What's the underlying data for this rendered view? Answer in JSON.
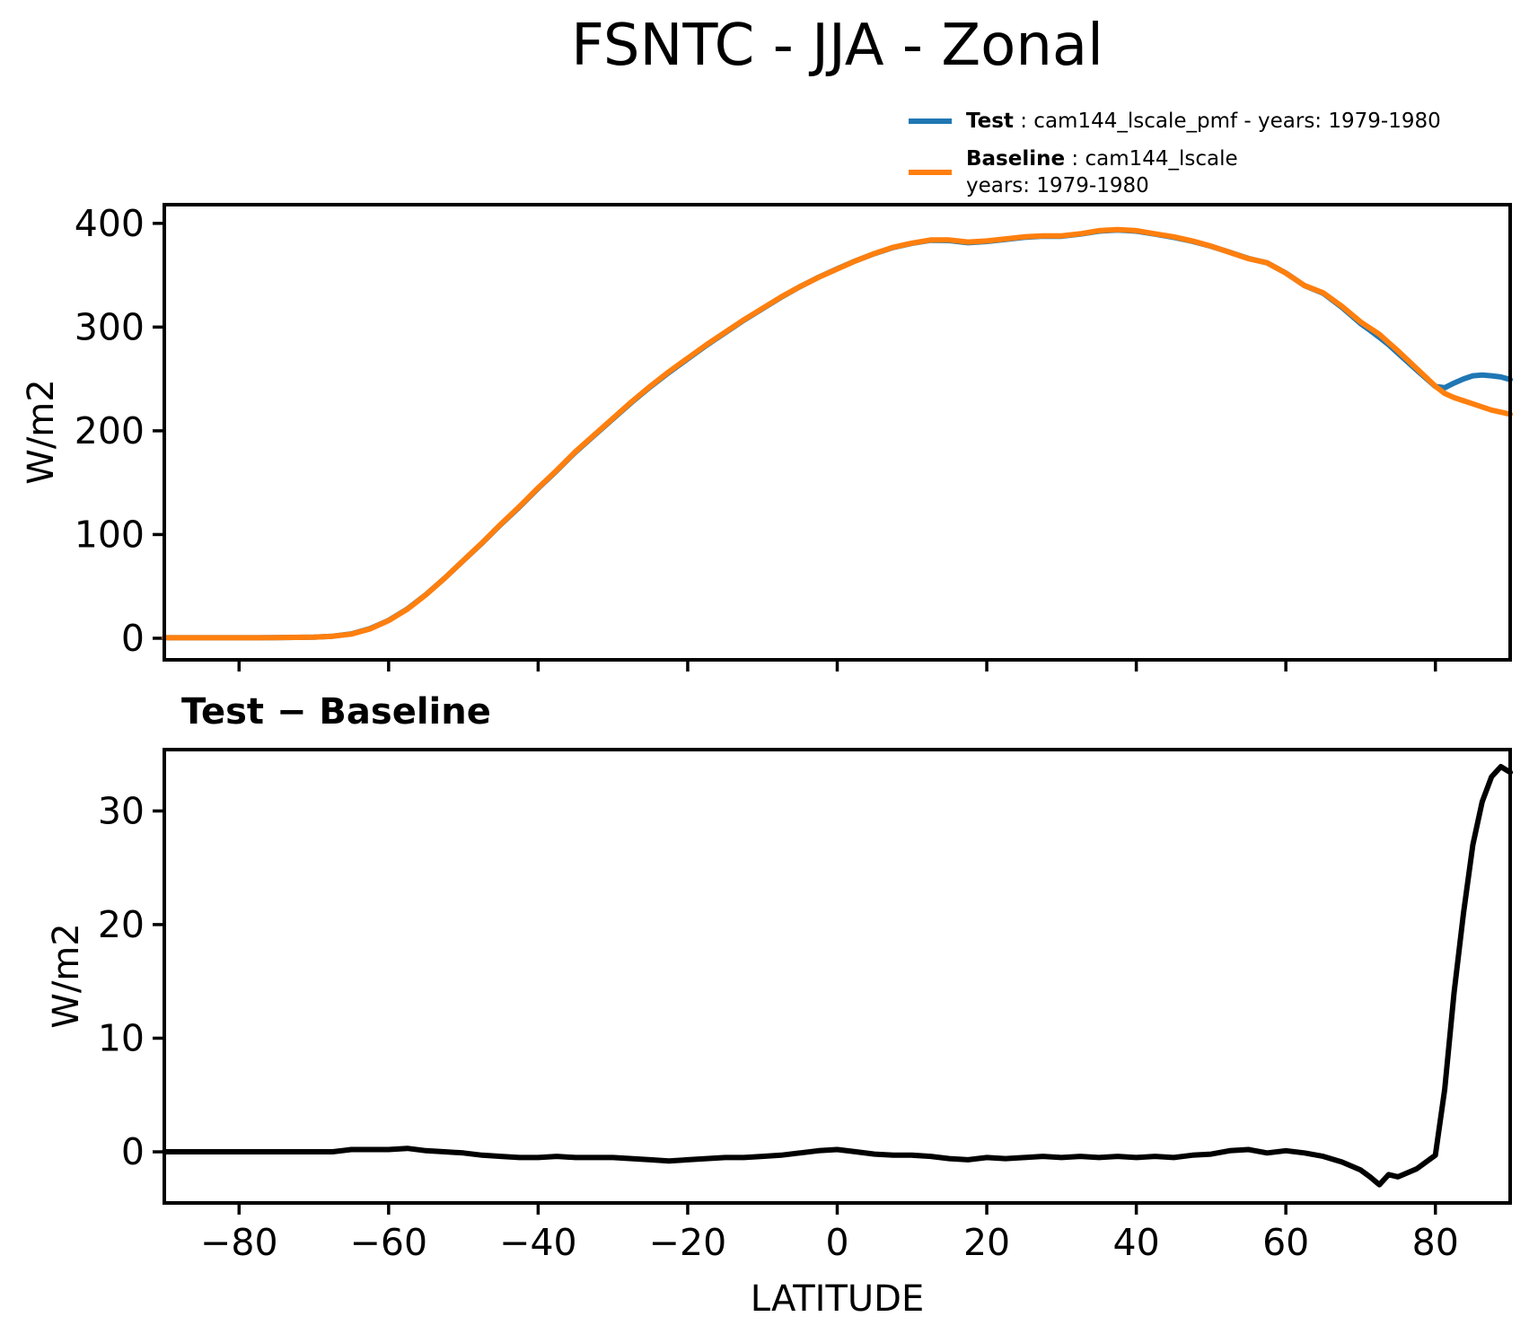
{
  "figure": {
    "title": "FSNTC - JJA - Zonal",
    "background": "#ffffff"
  },
  "legend": {
    "items": [
      {
        "name": "Test",
        "swatch_color": "#1f77b4",
        "label_bold": "Test",
        "label_rest": " : cam144_lscale_pmf - years: 1979-1980",
        "label_line2": ""
      },
      {
        "name": "Baseline",
        "swatch_color": "#ff7f0e",
        "label_bold": "Baseline",
        "label_rest": " : cam144_lscale",
        "label_line2": "years: 1979-1980"
      }
    ]
  },
  "panels": {
    "top": {
      "y_label": "W/m2"
    },
    "bottom": {
      "title": "Test − Baseline",
      "y_label": "W/m2",
      "x_label": "LATITUDE"
    }
  },
  "colors": {
    "test": "#1f77b4",
    "baseline": "#ff7f0e",
    "diff": "#000000",
    "axis": "#000000"
  },
  "chart_data": [
    {
      "type": "line",
      "title": "FSNTC - JJA - Zonal",
      "xlabel": "",
      "ylabel": "W/m2",
      "xlim": [
        -90,
        90
      ],
      "ylim": [
        -20.8,
        418
      ],
      "x_ticks": [
        -80,
        -60,
        -40,
        -20,
        0,
        20,
        40,
        60,
        80
      ],
      "y_ticks": [
        0,
        100,
        200,
        300,
        400
      ],
      "show_x_tick_labels": false,
      "grid": false,
      "legend_position": "upper right outside",
      "x": [
        -90,
        -87.5,
        -85,
        -82.5,
        -80,
        -77.5,
        -75,
        -72.5,
        -70,
        -67.5,
        -65,
        -62.5,
        -60,
        -57.5,
        -55,
        -52.5,
        -50,
        -47.5,
        -45,
        -42.5,
        -40,
        -37.5,
        -35,
        -32.5,
        -30,
        -27.5,
        -25,
        -22.5,
        -20,
        -17.5,
        -15,
        -12.5,
        -10,
        -7.5,
        -5,
        -2.5,
        0,
        2.5,
        5,
        7.5,
        10,
        12.5,
        15,
        17.5,
        20,
        22.5,
        25,
        27.5,
        30,
        32.5,
        35,
        37.5,
        40,
        42.5,
        45,
        47.5,
        50,
        52.5,
        55,
        57.5,
        60,
        62.5,
        65,
        67.5,
        70,
        71.25,
        72.5,
        73.75,
        75,
        77.5,
        80,
        81.25,
        82.5,
        83.75,
        85,
        86.25,
        87.5,
        88.75,
        90
      ],
      "series": [
        {
          "name": "Test",
          "color": "#1f77b4",
          "values": [
            0.5,
            0.5,
            0.5,
            0.5,
            0.5,
            0.5,
            0.6,
            0.8,
            1,
            2,
            4.2,
            9.2,
            17.2,
            28.3,
            42.1,
            58,
            74.9,
            91.7,
            109.6,
            126.5,
            144.5,
            161.6,
            179.5,
            195.5,
            211.5,
            227.4,
            242.3,
            256.2,
            269.3,
            282.4,
            294.5,
            306.5,
            317.6,
            328.7,
            338.9,
            348.1,
            356.2,
            364,
            370.8,
            376.7,
            380.7,
            383.6,
            383.4,
            381.3,
            382.5,
            384.4,
            386.5,
            387.6,
            387.5,
            389.6,
            392.5,
            393.6,
            392.5,
            389.6,
            386.5,
            382.7,
            377.8,
            372.1,
            366.2,
            361.9,
            352.1,
            339.9,
            332.6,
            319.1,
            303.4,
            296.8,
            290.1,
            283,
            274.8,
            258.5,
            242.7,
            241.5,
            246,
            250,
            253,
            253.8,
            253,
            251.9,
            249.4
          ]
        },
        {
          "name": "Baseline",
          "color": "#ff7f0e",
          "values": [
            0.5,
            0.5,
            0.5,
            0.5,
            0.5,
            0.5,
            0.6,
            0.8,
            1,
            2,
            4,
            9,
            17,
            28,
            42,
            58,
            75,
            92,
            110,
            127,
            145,
            162,
            180,
            196,
            212,
            228,
            243,
            257,
            270,
            283,
            295,
            307,
            318,
            329,
            339,
            348,
            356,
            364,
            371,
            377,
            381,
            384,
            384,
            382,
            383,
            385,
            387,
            388,
            388,
            390,
            393,
            394,
            393,
            390,
            387,
            383,
            378,
            372,
            366,
            362,
            352,
            340,
            333,
            320,
            305,
            299,
            293,
            285,
            277,
            260,
            243,
            236,
            232,
            229,
            226,
            223,
            220,
            218,
            216
          ]
        }
      ]
    },
    {
      "type": "line",
      "title": "Test − Baseline",
      "xlabel": "LATITUDE",
      "ylabel": "W/m2",
      "xlim": [
        -90,
        90
      ],
      "ylim": [
        -4.5,
        35.4
      ],
      "x_ticks": [
        -80,
        -60,
        -40,
        -20,
        0,
        20,
        40,
        60,
        80
      ],
      "y_ticks": [
        0,
        10,
        20,
        30
      ],
      "show_x_tick_labels": true,
      "grid": false,
      "x": [
        -90,
        -87.5,
        -85,
        -82.5,
        -80,
        -77.5,
        -75,
        -72.5,
        -70,
        -67.5,
        -65,
        -62.5,
        -60,
        -57.5,
        -55,
        -52.5,
        -50,
        -47.5,
        -45,
        -42.5,
        -40,
        -37.5,
        -35,
        -32.5,
        -30,
        -27.5,
        -25,
        -22.5,
        -20,
        -17.5,
        -15,
        -12.5,
        -10,
        -7.5,
        -5,
        -2.5,
        0,
        2.5,
        5,
        7.5,
        10,
        12.5,
        15,
        17.5,
        20,
        22.5,
        25,
        27.5,
        30,
        32.5,
        35,
        37.5,
        40,
        42.5,
        45,
        47.5,
        50,
        52.5,
        55,
        57.5,
        60,
        62.5,
        65,
        67.5,
        70,
        71.25,
        72.5,
        73.75,
        75,
        77.5,
        80,
        81.25,
        82.5,
        83.75,
        85,
        86.25,
        87.5,
        88.75,
        90
      ],
      "series": [
        {
          "name": "Test - Baseline",
          "color": "#000000",
          "values": [
            0,
            0,
            0,
            0,
            0,
            0,
            0,
            0,
            0,
            0,
            0.2,
            0.2,
            0.2,
            0.3,
            0.1,
            0,
            -0.1,
            -0.3,
            -0.4,
            -0.5,
            -0.5,
            -0.4,
            -0.5,
            -0.5,
            -0.5,
            -0.6,
            -0.7,
            -0.8,
            -0.7,
            -0.6,
            -0.5,
            -0.5,
            -0.4,
            -0.3,
            -0.1,
            0.1,
            0.2,
            0,
            -0.2,
            -0.3,
            -0.3,
            -0.4,
            -0.6,
            -0.7,
            -0.5,
            -0.6,
            -0.5,
            -0.4,
            -0.5,
            -0.4,
            -0.5,
            -0.4,
            -0.5,
            -0.4,
            -0.5,
            -0.3,
            -0.2,
            0.1,
            0.2,
            -0.1,
            0.1,
            -0.1,
            -0.4,
            -0.9,
            -1.6,
            -2.2,
            -2.9,
            -2,
            -2.2,
            -1.5,
            -0.3,
            5.5,
            14,
            21,
            27,
            30.8,
            33,
            33.9,
            33.4
          ]
        }
      ]
    }
  ]
}
